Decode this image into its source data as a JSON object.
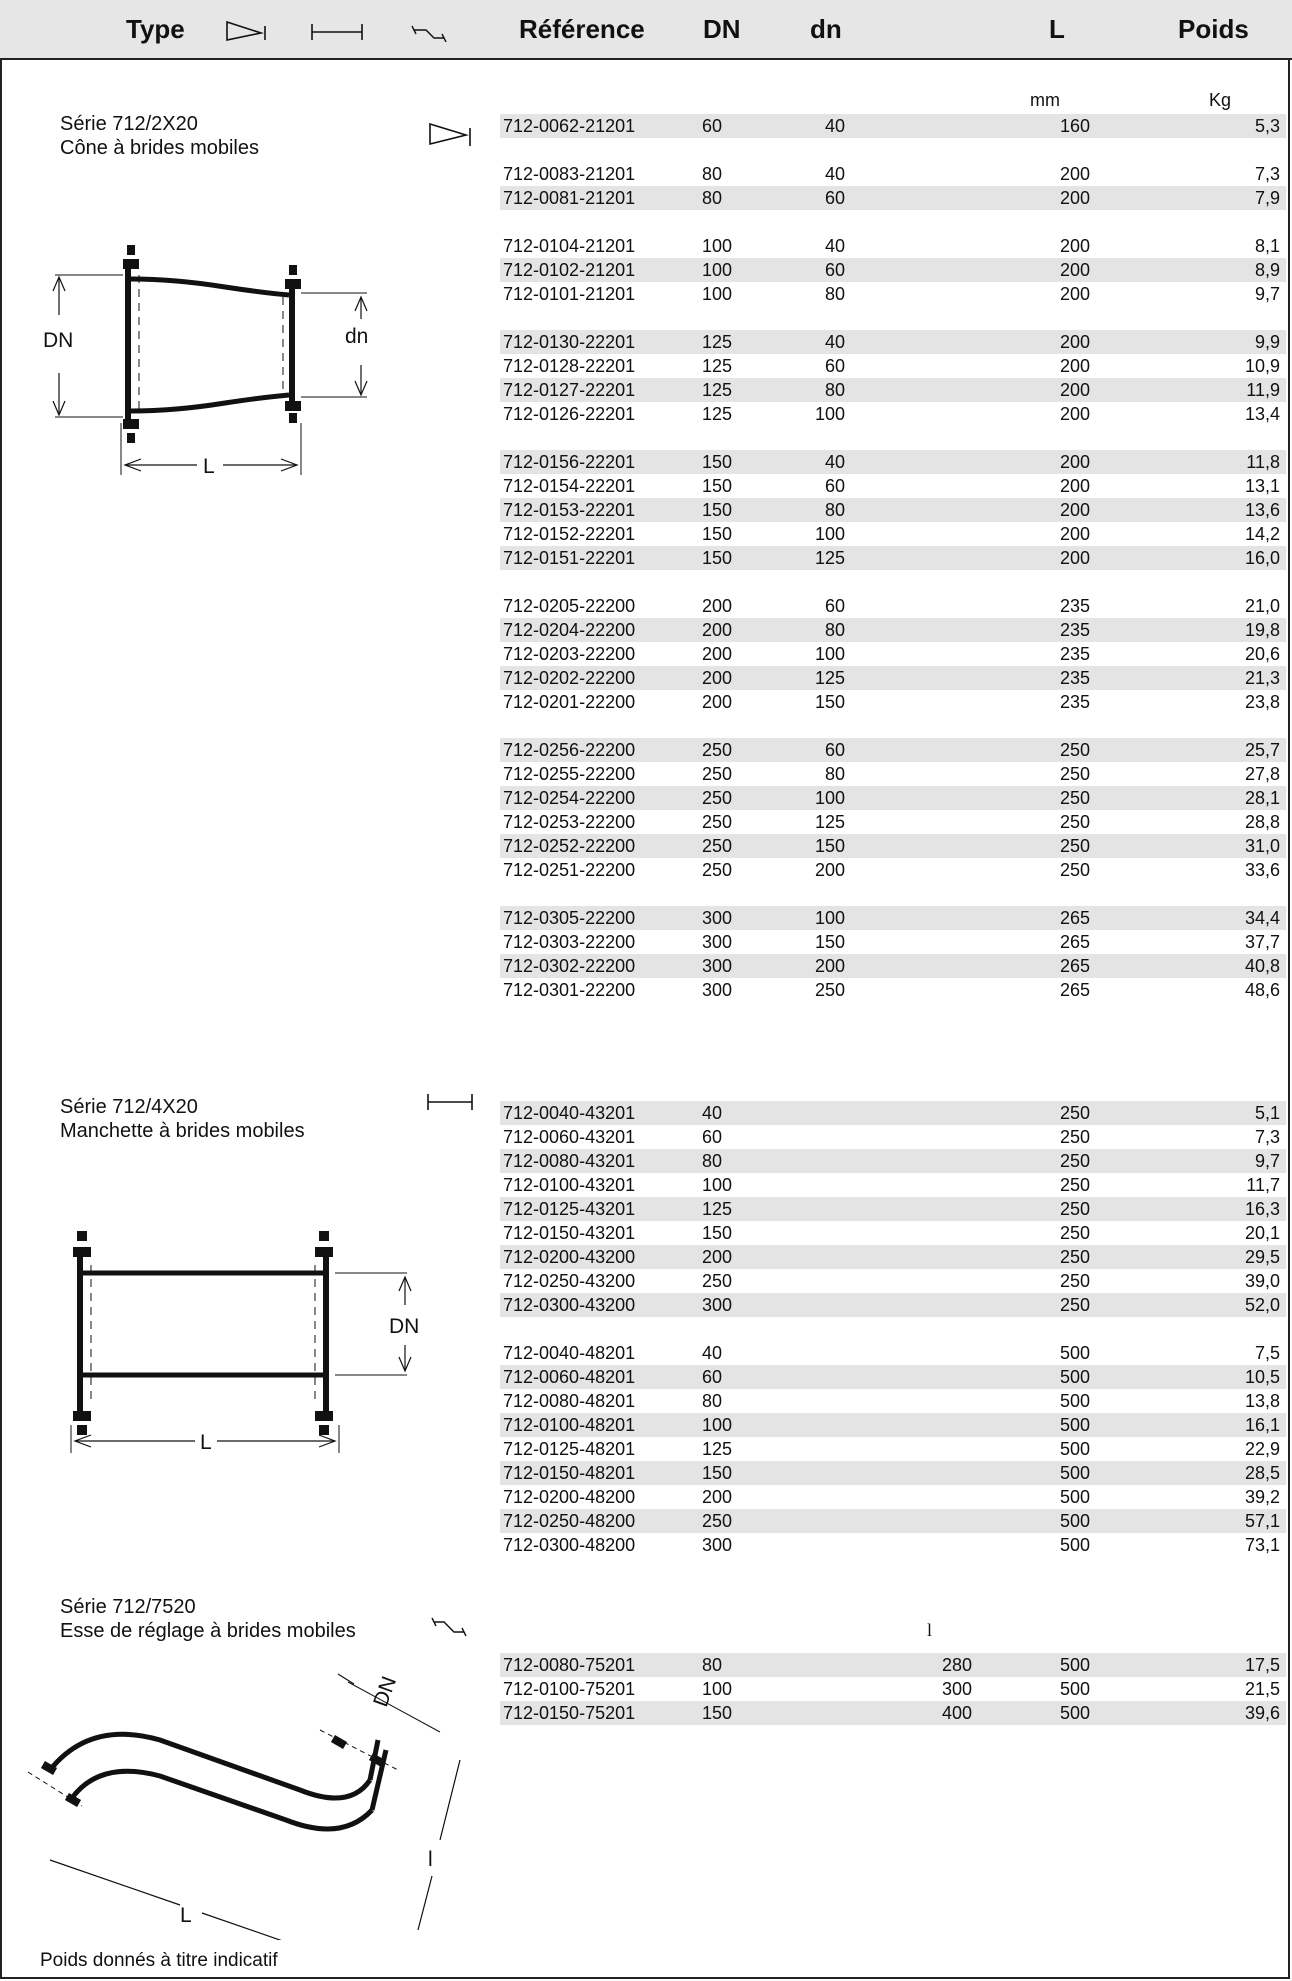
{
  "header": {
    "type_label": "Type",
    "reference_label": "Référence",
    "dn_label": "DN",
    "dn_small_label": "dn",
    "l_label": "L",
    "weight_label": "Poids",
    "type_icons": [
      "cone-icon",
      "sleeve-icon",
      "offset-icon"
    ]
  },
  "units": {
    "length": "mm",
    "weight": "Kg",
    "l_col": "l"
  },
  "series": [
    {
      "name": "Série 712/2X20",
      "description": "Cône à brides mobiles",
      "icon": "cone-icon",
      "drawing_labels": {
        "dn_big": "DN",
        "dn_small": "dn",
        "length": "L"
      },
      "rows": [
        {
          "ref": "712-0062-21201",
          "dn": "60",
          "dn2": "40",
          "L": "160",
          "w": "5,3"
        },
        {
          "ref": "712-0083-21201",
          "dn": "80",
          "dn2": "40",
          "L": "200",
          "w": "7,3"
        },
        {
          "ref": "712-0081-21201",
          "dn": "80",
          "dn2": "60",
          "L": "200",
          "w": "7,9"
        },
        {
          "ref": "712-0104-21201",
          "dn": "100",
          "dn2": "40",
          "L": "200",
          "w": "8,1"
        },
        {
          "ref": "712-0102-21201",
          "dn": "100",
          "dn2": "60",
          "L": "200",
          "w": "8,9"
        },
        {
          "ref": "712-0101-21201",
          "dn": "100",
          "dn2": "80",
          "L": "200",
          "w": "9,7"
        },
        {
          "ref": "712-0130-22201",
          "dn": "125",
          "dn2": "40",
          "L": "200",
          "w": "9,9"
        },
        {
          "ref": "712-0128-22201",
          "dn": "125",
          "dn2": "60",
          "L": "200",
          "w": "10,9"
        },
        {
          "ref": "712-0127-22201",
          "dn": "125",
          "dn2": "80",
          "L": "200",
          "w": "11,9"
        },
        {
          "ref": "712-0126-22201",
          "dn": "125",
          "dn2": "100",
          "L": "200",
          "w": "13,4"
        },
        {
          "ref": "712-0156-22201",
          "dn": "150",
          "dn2": "40",
          "L": "200",
          "w": "11,8"
        },
        {
          "ref": "712-0154-22201",
          "dn": "150",
          "dn2": "60",
          "L": "200",
          "w": "13,1"
        },
        {
          "ref": "712-0153-22201",
          "dn": "150",
          "dn2": "80",
          "L": "200",
          "w": "13,6"
        },
        {
          "ref": "712-0152-22201",
          "dn": "150",
          "dn2": "100",
          "L": "200",
          "w": "14,2"
        },
        {
          "ref": "712-0151-22201",
          "dn": "150",
          "dn2": "125",
          "L": "200",
          "w": "16,0"
        },
        {
          "ref": "712-0205-22200",
          "dn": "200",
          "dn2": "60",
          "L": "235",
          "w": "21,0"
        },
        {
          "ref": "712-0204-22200",
          "dn": "200",
          "dn2": "80",
          "L": "235",
          "w": "19,8"
        },
        {
          "ref": "712-0203-22200",
          "dn": "200",
          "dn2": "100",
          "L": "235",
          "w": "20,6"
        },
        {
          "ref": "712-0202-22200",
          "dn": "200",
          "dn2": "125",
          "L": "235",
          "w": "21,3"
        },
        {
          "ref": "712-0201-22200",
          "dn": "200",
          "dn2": "150",
          "L": "235",
          "w": "23,8"
        },
        {
          "ref": "712-0256-22200",
          "dn": "250",
          "dn2": "60",
          "L": "250",
          "w": "25,7"
        },
        {
          "ref": "712-0255-22200",
          "dn": "250",
          "dn2": "80",
          "L": "250",
          "w": "27,8"
        },
        {
          "ref": "712-0254-22200",
          "dn": "250",
          "dn2": "100",
          "L": "250",
          "w": "28,1"
        },
        {
          "ref": "712-0253-22200",
          "dn": "250",
          "dn2": "125",
          "L": "250",
          "w": "28,8"
        },
        {
          "ref": "712-0252-22200",
          "dn": "250",
          "dn2": "150",
          "L": "250",
          "w": "31,0"
        },
        {
          "ref": "712-0251-22200",
          "dn": "250",
          "dn2": "200",
          "L": "250",
          "w": "33,6"
        },
        {
          "ref": "712-0305-22200",
          "dn": "300",
          "dn2": "100",
          "L": "265",
          "w": "34,4"
        },
        {
          "ref": "712-0303-22200",
          "dn": "300",
          "dn2": "150",
          "L": "265",
          "w": "37,7"
        },
        {
          "ref": "712-0302-22200",
          "dn": "300",
          "dn2": "200",
          "L": "265",
          "w": "40,8"
        },
        {
          "ref": "712-0301-22200",
          "dn": "300",
          "dn2": "250",
          "L": "265",
          "w": "48,6"
        }
      ]
    },
    {
      "name": "Série 712/4X20",
      "description": "Manchette à brides mobiles",
      "icon": "sleeve-icon",
      "drawing_labels": {
        "dn_big": "DN",
        "length": "L"
      },
      "rows": [
        {
          "ref": "712-0040-43201",
          "dn": "40",
          "L": "250",
          "w": "5,1"
        },
        {
          "ref": "712-0060-43201",
          "dn": "60",
          "L": "250",
          "w": "7,3"
        },
        {
          "ref": "712-0080-43201",
          "dn": "80",
          "L": "250",
          "w": "9,7"
        },
        {
          "ref": "712-0100-43201",
          "dn": "100",
          "L": "250",
          "w": "11,7"
        },
        {
          "ref": "712-0125-43201",
          "dn": "125",
          "L": "250",
          "w": "16,3"
        },
        {
          "ref": "712-0150-43201",
          "dn": "150",
          "L": "250",
          "w": "20,1"
        },
        {
          "ref": "712-0200-43200",
          "dn": "200",
          "L": "250",
          "w": "29,5"
        },
        {
          "ref": "712-0250-43200",
          "dn": "250",
          "L": "250",
          "w": "39,0"
        },
        {
          "ref": "712-0300-43200",
          "dn": "300",
          "L": "250",
          "w": "52,0"
        },
        {
          "ref": "712-0040-48201",
          "dn": "40",
          "L": "500",
          "w": "7,5"
        },
        {
          "ref": "712-0060-48201",
          "dn": "60",
          "L": "500",
          "w": "10,5"
        },
        {
          "ref": "712-0080-48201",
          "dn": "80",
          "L": "500",
          "w": "13,8"
        },
        {
          "ref": "712-0100-48201",
          "dn": "100",
          "L": "500",
          "w": "16,1"
        },
        {
          "ref": "712-0125-48201",
          "dn": "125",
          "L": "500",
          "w": "22,9"
        },
        {
          "ref": "712-0150-48201",
          "dn": "150",
          "L": "500",
          "w": "28,5"
        },
        {
          "ref": "712-0200-48200",
          "dn": "200",
          "L": "500",
          "w": "39,2"
        },
        {
          "ref": "712-0250-48200",
          "dn": "250",
          "L": "500",
          "w": "57,1"
        },
        {
          "ref": "712-0300-48200",
          "dn": "300",
          "L": "500",
          "w": "73,1"
        }
      ]
    },
    {
      "name": "Série 712/7520",
      "description": "Esse de réglage à brides mobiles",
      "icon": "offset-icon",
      "drawing_labels": {
        "dn_big": "DN",
        "length": "L",
        "offset": "l"
      },
      "rows": [
        {
          "ref": "712-0080-75201",
          "dn": "80",
          "l": "280",
          "L": "500",
          "w": "17,5"
        },
        {
          "ref": "712-0100-75201",
          "dn": "100",
          "l": "300",
          "L": "500",
          "w": "21,5"
        },
        {
          "ref": "712-0150-75201",
          "dn": "150",
          "l": "400",
          "L": "500",
          "w": "39,6"
        }
      ]
    }
  ],
  "footer": "Poids donnés à titre indicatif"
}
